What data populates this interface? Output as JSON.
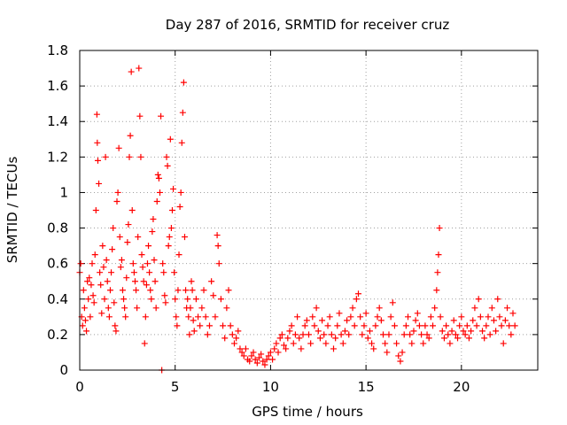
{
  "chart_data": {
    "type": "scatter",
    "title": "Day 287 of 2016, SRMTID for receiver cruz",
    "xlabel": "GPS time / hours",
    "ylabel": "SRMTID / TECUs",
    "xlim": [
      0,
      24
    ],
    "ylim": [
      0,
      1.8
    ],
    "xticks": [
      0,
      5,
      10,
      15,
      20
    ],
    "yticks": [
      0,
      0.2,
      0.4,
      0.6,
      0.8,
      1,
      1.2,
      1.4,
      1.6,
      1.8
    ],
    "xtick_labels": [
      "0",
      "5",
      "10",
      "15",
      "20"
    ],
    "ytick_labels": [
      "0",
      "0.2",
      "0.4",
      "0.6",
      "0.8",
      "1",
      "1.2",
      "1.4",
      "1.6",
      "1.8"
    ],
    "grid": true,
    "marker": "+",
    "series": [
      {
        "name": "SRMTID",
        "color": "#ff0000",
        "points": [
          [
            0.0,
            0.55
          ],
          [
            0.05,
            0.6
          ],
          [
            0.1,
            0.3
          ],
          [
            0.15,
            0.25
          ],
          [
            0.2,
            0.45
          ],
          [
            0.25,
            0.35
          ],
          [
            0.3,
            0.28
          ],
          [
            0.35,
            0.22
          ],
          [
            0.4,
            0.5
          ],
          [
            0.45,
            0.4
          ],
          [
            0.5,
            0.52
          ],
          [
            0.55,
            0.3
          ],
          [
            0.6,
            0.48
          ],
          [
            0.65,
            0.6
          ],
          [
            0.7,
            0.42
          ],
          [
            0.75,
            0.38
          ],
          [
            0.8,
            0.65
          ],
          [
            0.85,
            0.9
          ],
          [
            0.9,
            1.44
          ],
          [
            0.92,
            1.28
          ],
          [
            0.95,
            1.18
          ],
          [
            1.0,
            1.05
          ],
          [
            1.05,
            0.55
          ],
          [
            1.1,
            0.48
          ],
          [
            1.15,
            0.32
          ],
          [
            1.2,
            0.7
          ],
          [
            1.25,
            0.58
          ],
          [
            1.3,
            0.4
          ],
          [
            1.35,
            1.2
          ],
          [
            1.4,
            0.62
          ],
          [
            1.45,
            0.5
          ],
          [
            1.5,
            0.35
          ],
          [
            1.55,
            0.3
          ],
          [
            1.6,
            0.45
          ],
          [
            1.65,
            0.55
          ],
          [
            1.7,
            0.68
          ],
          [
            1.75,
            0.8
          ],
          [
            1.8,
            0.38
          ],
          [
            1.85,
            0.25
          ],
          [
            1.9,
            0.22
          ],
          [
            1.95,
            0.95
          ],
          [
            2.0,
            1.0
          ],
          [
            2.05,
            1.25
          ],
          [
            2.1,
            0.75
          ],
          [
            2.15,
            0.58
          ],
          [
            2.2,
            0.62
          ],
          [
            2.25,
            0.45
          ],
          [
            2.3,
            0.4
          ],
          [
            2.35,
            0.35
          ],
          [
            2.4,
            0.3
          ],
          [
            2.45,
            0.52
          ],
          [
            2.5,
            0.72
          ],
          [
            2.55,
            0.82
          ],
          [
            2.6,
            1.2
          ],
          [
            2.65,
            1.32
          ],
          [
            2.7,
            1.68
          ],
          [
            2.75,
            0.9
          ],
          [
            2.8,
            0.6
          ],
          [
            2.85,
            0.55
          ],
          [
            2.9,
            0.5
          ],
          [
            2.95,
            0.45
          ],
          [
            3.0,
            0.35
          ],
          [
            3.05,
            0.75
          ],
          [
            3.1,
            1.7
          ],
          [
            3.15,
            1.43
          ],
          [
            3.2,
            1.2
          ],
          [
            3.25,
            0.65
          ],
          [
            3.3,
            0.58
          ],
          [
            3.35,
            0.5
          ],
          [
            3.4,
            0.15
          ],
          [
            3.45,
            0.3
          ],
          [
            3.5,
            0.48
          ],
          [
            3.55,
            0.6
          ],
          [
            3.6,
            0.7
          ],
          [
            3.65,
            0.55
          ],
          [
            3.7,
            0.45
          ],
          [
            3.75,
            0.4
          ],
          [
            3.8,
            0.78
          ],
          [
            3.85,
            0.85
          ],
          [
            3.9,
            0.62
          ],
          [
            3.95,
            0.5
          ],
          [
            4.0,
            0.35
          ],
          [
            4.05,
            0.95
          ],
          [
            4.1,
            1.1
          ],
          [
            4.15,
            1.08
          ],
          [
            4.2,
            1.0
          ],
          [
            4.25,
            1.43
          ],
          [
            4.3,
            0.0
          ],
          [
            4.35,
            0.6
          ],
          [
            4.4,
            0.55
          ],
          [
            4.45,
            0.42
          ],
          [
            4.5,
            0.38
          ],
          [
            4.55,
            1.2
          ],
          [
            4.6,
            1.15
          ],
          [
            4.65,
            0.7
          ],
          [
            4.7,
            0.75
          ],
          [
            4.75,
            1.3
          ],
          [
            4.8,
            0.8
          ],
          [
            4.85,
            0.9
          ],
          [
            4.9,
            1.02
          ],
          [
            4.95,
            0.55
          ],
          [
            5.0,
            0.4
          ],
          [
            5.05,
            0.3
          ],
          [
            5.1,
            0.25
          ],
          [
            5.15,
            0.45
          ],
          [
            5.2,
            0.65
          ],
          [
            5.25,
            0.92
          ],
          [
            5.3,
            1.0
          ],
          [
            5.35,
            1.28
          ],
          [
            5.4,
            1.45
          ],
          [
            5.45,
            1.62
          ],
          [
            5.5,
            0.75
          ],
          [
            5.55,
            0.45
          ],
          [
            5.6,
            0.35
          ],
          [
            5.65,
            0.4
          ],
          [
            5.7,
            0.3
          ],
          [
            5.75,
            0.2
          ],
          [
            5.8,
            0.35
          ],
          [
            5.85,
            0.5
          ],
          [
            5.9,
            0.45
          ],
          [
            5.95,
            0.28
          ],
          [
            6.0,
            0.22
          ],
          [
            6.1,
            0.4
          ],
          [
            6.2,
            0.3
          ],
          [
            6.3,
            0.25
          ],
          [
            6.4,
            0.35
          ],
          [
            6.5,
            0.45
          ],
          [
            6.6,
            0.3
          ],
          [
            6.7,
            0.2
          ],
          [
            6.8,
            0.25
          ],
          [
            6.9,
            0.5
          ],
          [
            7.0,
            0.42
          ],
          [
            7.1,
            0.3
          ],
          [
            7.2,
            0.76
          ],
          [
            7.25,
            0.7
          ],
          [
            7.3,
            0.6
          ],
          [
            7.4,
            0.4
          ],
          [
            7.5,
            0.25
          ],
          [
            7.6,
            0.18
          ],
          [
            7.7,
            0.35
          ],
          [
            7.8,
            0.45
          ],
          [
            7.9,
            0.25
          ],
          [
            8.0,
            0.2
          ],
          [
            8.1,
            0.15
          ],
          [
            8.2,
            0.18
          ],
          [
            8.3,
            0.22
          ],
          [
            8.4,
            0.12
          ],
          [
            8.5,
            0.1
          ],
          [
            8.6,
            0.08
          ],
          [
            8.7,
            0.12
          ],
          [
            8.8,
            0.06
          ],
          [
            8.9,
            0.05
          ],
          [
            9.0,
            0.08
          ],
          [
            9.1,
            0.1
          ],
          [
            9.2,
            0.06
          ],
          [
            9.3,
            0.04
          ],
          [
            9.4,
            0.07
          ],
          [
            9.5,
            0.09
          ],
          [
            9.6,
            0.05
          ],
          [
            9.7,
            0.03
          ],
          [
            9.8,
            0.06
          ],
          [
            9.9,
            0.08
          ],
          [
            10.0,
            0.1
          ],
          [
            10.1,
            0.06
          ],
          [
            10.2,
            0.12
          ],
          [
            10.3,
            0.15
          ],
          [
            10.4,
            0.1
          ],
          [
            10.5,
            0.18
          ],
          [
            10.6,
            0.2
          ],
          [
            10.7,
            0.14
          ],
          [
            10.8,
            0.12
          ],
          [
            10.9,
            0.18
          ],
          [
            11.0,
            0.22
          ],
          [
            11.1,
            0.25
          ],
          [
            11.2,
            0.15
          ],
          [
            11.3,
            0.2
          ],
          [
            11.4,
            0.3
          ],
          [
            11.5,
            0.18
          ],
          [
            11.6,
            0.12
          ],
          [
            11.7,
            0.2
          ],
          [
            11.8,
            0.25
          ],
          [
            11.9,
            0.28
          ],
          [
            12.0,
            0.2
          ],
          [
            12.1,
            0.15
          ],
          [
            12.2,
            0.3
          ],
          [
            12.3,
            0.25
          ],
          [
            12.4,
            0.35
          ],
          [
            12.5,
            0.22
          ],
          [
            12.6,
            0.18
          ],
          [
            12.7,
            0.28
          ],
          [
            12.8,
            0.2
          ],
          [
            12.9,
            0.15
          ],
          [
            13.0,
            0.25
          ],
          [
            13.1,
            0.3
          ],
          [
            13.2,
            0.2
          ],
          [
            13.3,
            0.12
          ],
          [
            13.4,
            0.18
          ],
          [
            13.5,
            0.25
          ],
          [
            13.6,
            0.32
          ],
          [
            13.7,
            0.2
          ],
          [
            13.8,
            0.15
          ],
          [
            13.9,
            0.22
          ],
          [
            14.0,
            0.28
          ],
          [
            14.1,
            0.2
          ],
          [
            14.2,
            0.3
          ],
          [
            14.3,
            0.35
          ],
          [
            14.4,
            0.25
          ],
          [
            14.5,
            0.4
          ],
          [
            14.6,
            0.43
          ],
          [
            14.7,
            0.3
          ],
          [
            14.8,
            0.2
          ],
          [
            14.9,
            0.25
          ],
          [
            15.0,
            0.32
          ],
          [
            15.1,
            0.18
          ],
          [
            15.2,
            0.22
          ],
          [
            15.3,
            0.15
          ],
          [
            15.4,
            0.12
          ],
          [
            15.5,
            0.25
          ],
          [
            15.6,
            0.3
          ],
          [
            15.7,
            0.35
          ],
          [
            15.8,
            0.28
          ],
          [
            15.9,
            0.2
          ],
          [
            16.0,
            0.15
          ],
          [
            16.1,
            0.1
          ],
          [
            16.2,
            0.2
          ],
          [
            16.3,
            0.3
          ],
          [
            16.4,
            0.38
          ],
          [
            16.5,
            0.25
          ],
          [
            16.6,
            0.15
          ],
          [
            16.7,
            0.08
          ],
          [
            16.8,
            0.05
          ],
          [
            16.9,
            0.1
          ],
          [
            17.0,
            0.2
          ],
          [
            17.1,
            0.25
          ],
          [
            17.2,
            0.3
          ],
          [
            17.3,
            0.2
          ],
          [
            17.4,
            0.15
          ],
          [
            17.5,
            0.22
          ],
          [
            17.6,
            0.28
          ],
          [
            17.7,
            0.32
          ],
          [
            17.8,
            0.25
          ],
          [
            17.9,
            0.2
          ],
          [
            18.0,
            0.15
          ],
          [
            18.1,
            0.25
          ],
          [
            18.2,
            0.2
          ],
          [
            18.3,
            0.18
          ],
          [
            18.4,
            0.3
          ],
          [
            18.5,
            0.25
          ],
          [
            18.6,
            0.35
          ],
          [
            18.7,
            0.45
          ],
          [
            18.75,
            0.55
          ],
          [
            18.8,
            0.65
          ],
          [
            18.85,
            0.8
          ],
          [
            18.9,
            0.3
          ],
          [
            19.0,
            0.22
          ],
          [
            19.1,
            0.18
          ],
          [
            19.2,
            0.25
          ],
          [
            19.3,
            0.2
          ],
          [
            19.4,
            0.15
          ],
          [
            19.5,
            0.22
          ],
          [
            19.6,
            0.28
          ],
          [
            19.7,
            0.2
          ],
          [
            19.8,
            0.18
          ],
          [
            19.9,
            0.25
          ],
          [
            20.0,
            0.3
          ],
          [
            20.1,
            0.22
          ],
          [
            20.2,
            0.2
          ],
          [
            20.3,
            0.25
          ],
          [
            20.4,
            0.18
          ],
          [
            20.5,
            0.22
          ],
          [
            20.6,
            0.28
          ],
          [
            20.7,
            0.35
          ],
          [
            20.8,
            0.25
          ],
          [
            20.9,
            0.4
          ],
          [
            21.0,
            0.3
          ],
          [
            21.1,
            0.22
          ],
          [
            21.2,
            0.18
          ],
          [
            21.3,
            0.25
          ],
          [
            21.4,
            0.3
          ],
          [
            21.5,
            0.2
          ],
          [
            21.6,
            0.35
          ],
          [
            21.7,
            0.28
          ],
          [
            21.8,
            0.22
          ],
          [
            21.9,
            0.4
          ],
          [
            22.0,
            0.3
          ],
          [
            22.1,
            0.25
          ],
          [
            22.2,
            0.15
          ],
          [
            22.3,
            0.28
          ],
          [
            22.4,
            0.35
          ],
          [
            22.5,
            0.25
          ],
          [
            22.6,
            0.2
          ],
          [
            22.7,
            0.32
          ],
          [
            22.8,
            0.25
          ]
        ]
      }
    ]
  }
}
